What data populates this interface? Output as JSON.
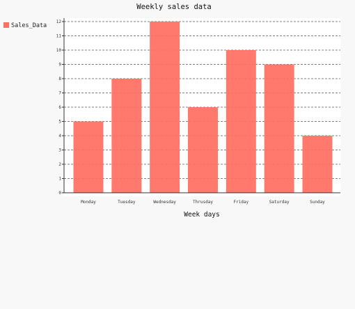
{
  "chart_data": {
    "type": "bar",
    "title": "Weekly sales data",
    "xlabel": "Week days",
    "ylabel": "",
    "categories": [
      "Monday",
      "Tuesday",
      "Wednesday",
      "Thrusday",
      "Friday",
      "Saturday",
      "Sunday"
    ],
    "series": [
      {
        "name": "Sales_Data",
        "values": [
          5,
          8,
          12,
          6,
          10,
          9,
          4
        ],
        "color": "#ff6f61"
      }
    ],
    "ylim": [
      0,
      12
    ],
    "yticks": [
      0,
      1,
      2,
      3,
      4,
      5,
      6,
      7,
      8,
      9,
      10,
      11,
      12
    ],
    "grid": true,
    "legend": "left"
  }
}
